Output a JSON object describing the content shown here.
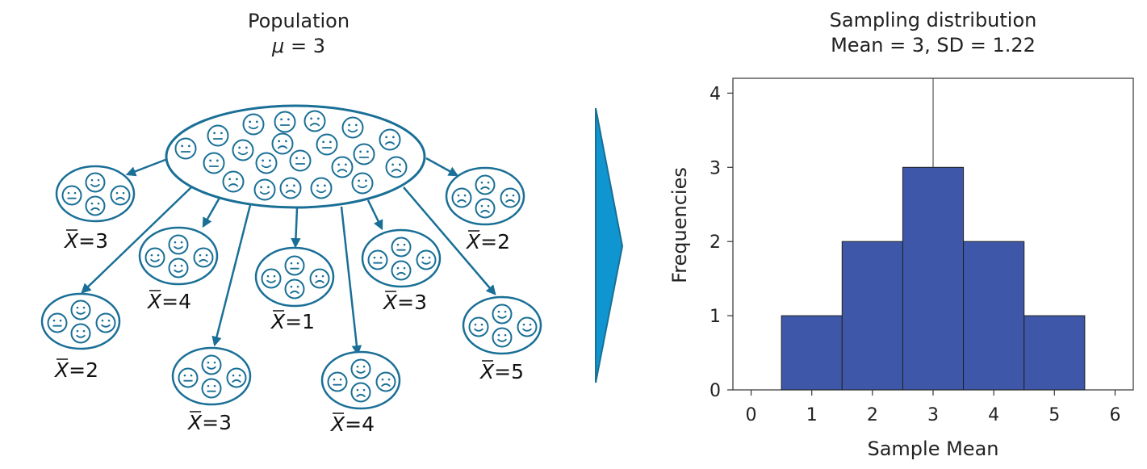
{
  "left": {
    "title": "Population",
    "mu_symbol": "μ",
    "mu_value": "= 3",
    "xbar_symbol": "X",
    "samples": [
      {
        "mean": "=3",
        "faces": [
          "neutral",
          "happy",
          "sad",
          "sad"
        ]
      },
      {
        "mean": "=2",
        "faces": [
          "neutral",
          "happy",
          "happy",
          "happy"
        ]
      },
      {
        "mean": "=4",
        "faces": [
          "happy",
          "happy",
          "happy",
          "sad"
        ]
      },
      {
        "mean": "=3",
        "faces": [
          "neutral",
          "happy",
          "neutral",
          "sad"
        ]
      },
      {
        "mean": "=1",
        "faces": [
          "happy",
          "neutral",
          "sad",
          "sad"
        ]
      },
      {
        "mean": "=4",
        "faces": [
          "neutral",
          "happy",
          "sad",
          "sad"
        ]
      },
      {
        "mean": "=3",
        "faces": [
          "neutral",
          "neutral",
          "sad",
          "happy"
        ]
      },
      {
        "mean": "=2",
        "faces": [
          "sad",
          "sad",
          "sad",
          "sad"
        ]
      },
      {
        "mean": "=5",
        "faces": [
          "happy",
          "happy",
          "happy",
          "happy"
        ]
      }
    ]
  },
  "arrow_color": "#0f95d0",
  "line_color": "#1a6f96",
  "chart_data": {
    "type": "bar",
    "title": "Sampling distribution",
    "subtitle": "Mean = 3, SD = 1.22",
    "xlabel": "Sample Mean",
    "ylabel": "Frequencies",
    "categories": [
      1,
      2,
      3,
      4,
      5
    ],
    "values": [
      1,
      2,
      3,
      2,
      1
    ],
    "bar_width": 1,
    "xlim": [
      -0.3,
      6.3
    ],
    "ylim": [
      0,
      4.2
    ],
    "x_ticks": [
      0,
      1,
      2,
      3,
      4,
      5,
      6
    ],
    "y_ticks": [
      0,
      1,
      2,
      3,
      4
    ],
    "mean_line_x": 3,
    "bar_color": "#3f57a8",
    "grid": false
  }
}
